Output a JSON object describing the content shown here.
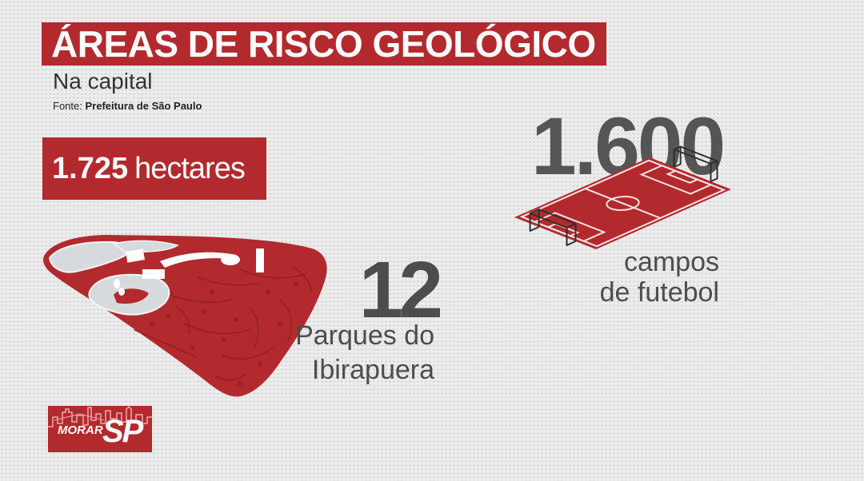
{
  "colors": {
    "accent": "#b22a2e",
    "text": "#4d4d4d",
    "background": "#ececec"
  },
  "title": "ÁREAS DE RISCO GEOLÓGICO",
  "subtitle": "Na capital",
  "source": {
    "label": "Fonte:",
    "name": "Prefeitura de São Paulo"
  },
  "area": {
    "value": "1.725",
    "unit": "hectares"
  },
  "parks": {
    "value": "12",
    "label_line1": "Parques do",
    "label_line2": "Ibirapuera",
    "icon": "park-map-illustration"
  },
  "fields": {
    "value": "1.600",
    "label_line1": "campos",
    "label_line2": "de futebol",
    "icon": "soccer-field-illustration"
  },
  "logo": {
    "text_main": "MORAR",
    "text_accent": "SP",
    "icon": "city-skyline-icon"
  }
}
